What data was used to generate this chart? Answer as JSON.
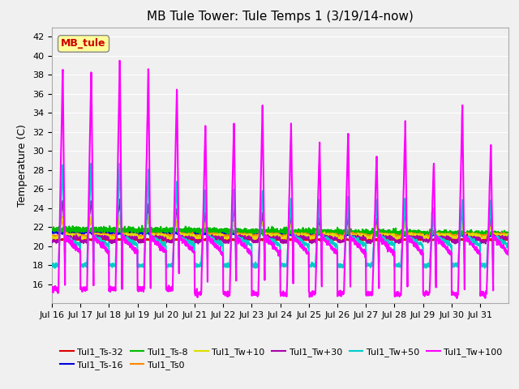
{
  "title": "MB Tule Tower: Tule Temps 1 (3/19/14-now)",
  "ylabel": "Temperature (C)",
  "ylim": [
    14,
    43
  ],
  "yticks": [
    16,
    18,
    20,
    22,
    24,
    26,
    28,
    30,
    32,
    34,
    36,
    38,
    40,
    42
  ],
  "xtick_labels": [
    "Jul 16",
    "Jul 17",
    "Jul 18",
    "Jul 19",
    "Jul 20",
    "Jul 21",
    "Jul 22",
    "Jul 23",
    "Jul 24",
    "Jul 25",
    "Jul 26",
    "Jul 27",
    "Jul 28",
    "Jul 29",
    "Jul 30",
    "Jul 31"
  ],
  "series_order": [
    "Tul1_Ts-32",
    "Tul1_Ts-16",
    "Tul1_Ts-8",
    "Tul1_Ts0",
    "Tul1_Tw+10",
    "Tul1_Tw+30",
    "Tul1_Tw+50",
    "Tul1_Tw+100"
  ],
  "series_colors": {
    "Tul1_Ts-32": "#dd0000",
    "Tul1_Ts-16": "#0000dd",
    "Tul1_Ts-8": "#00bb00",
    "Tul1_Ts0": "#ff8800",
    "Tul1_Tw+10": "#dddd00",
    "Tul1_Tw+30": "#aa00aa",
    "Tul1_Tw+50": "#00cccc",
    "Tul1_Tw+100": "#ff00ff"
  },
  "series_lw": {
    "Tul1_Ts-32": 1.2,
    "Tul1_Ts-16": 1.5,
    "Tul1_Ts-8": 1.5,
    "Tul1_Ts0": 1.2,
    "Tul1_Tw+10": 1.2,
    "Tul1_Tw+30": 1.2,
    "Tul1_Tw+50": 1.5,
    "Tul1_Tw+100": 1.5
  },
  "annotation": {
    "text": "MB_tule",
    "color": "#cc0000",
    "bg": "#ffff99"
  },
  "bg_color": "#f0f0f0",
  "plot_bg": "#f0f0f0",
  "grid_color": "#ffffff",
  "n_days": 16,
  "spd": 144
}
